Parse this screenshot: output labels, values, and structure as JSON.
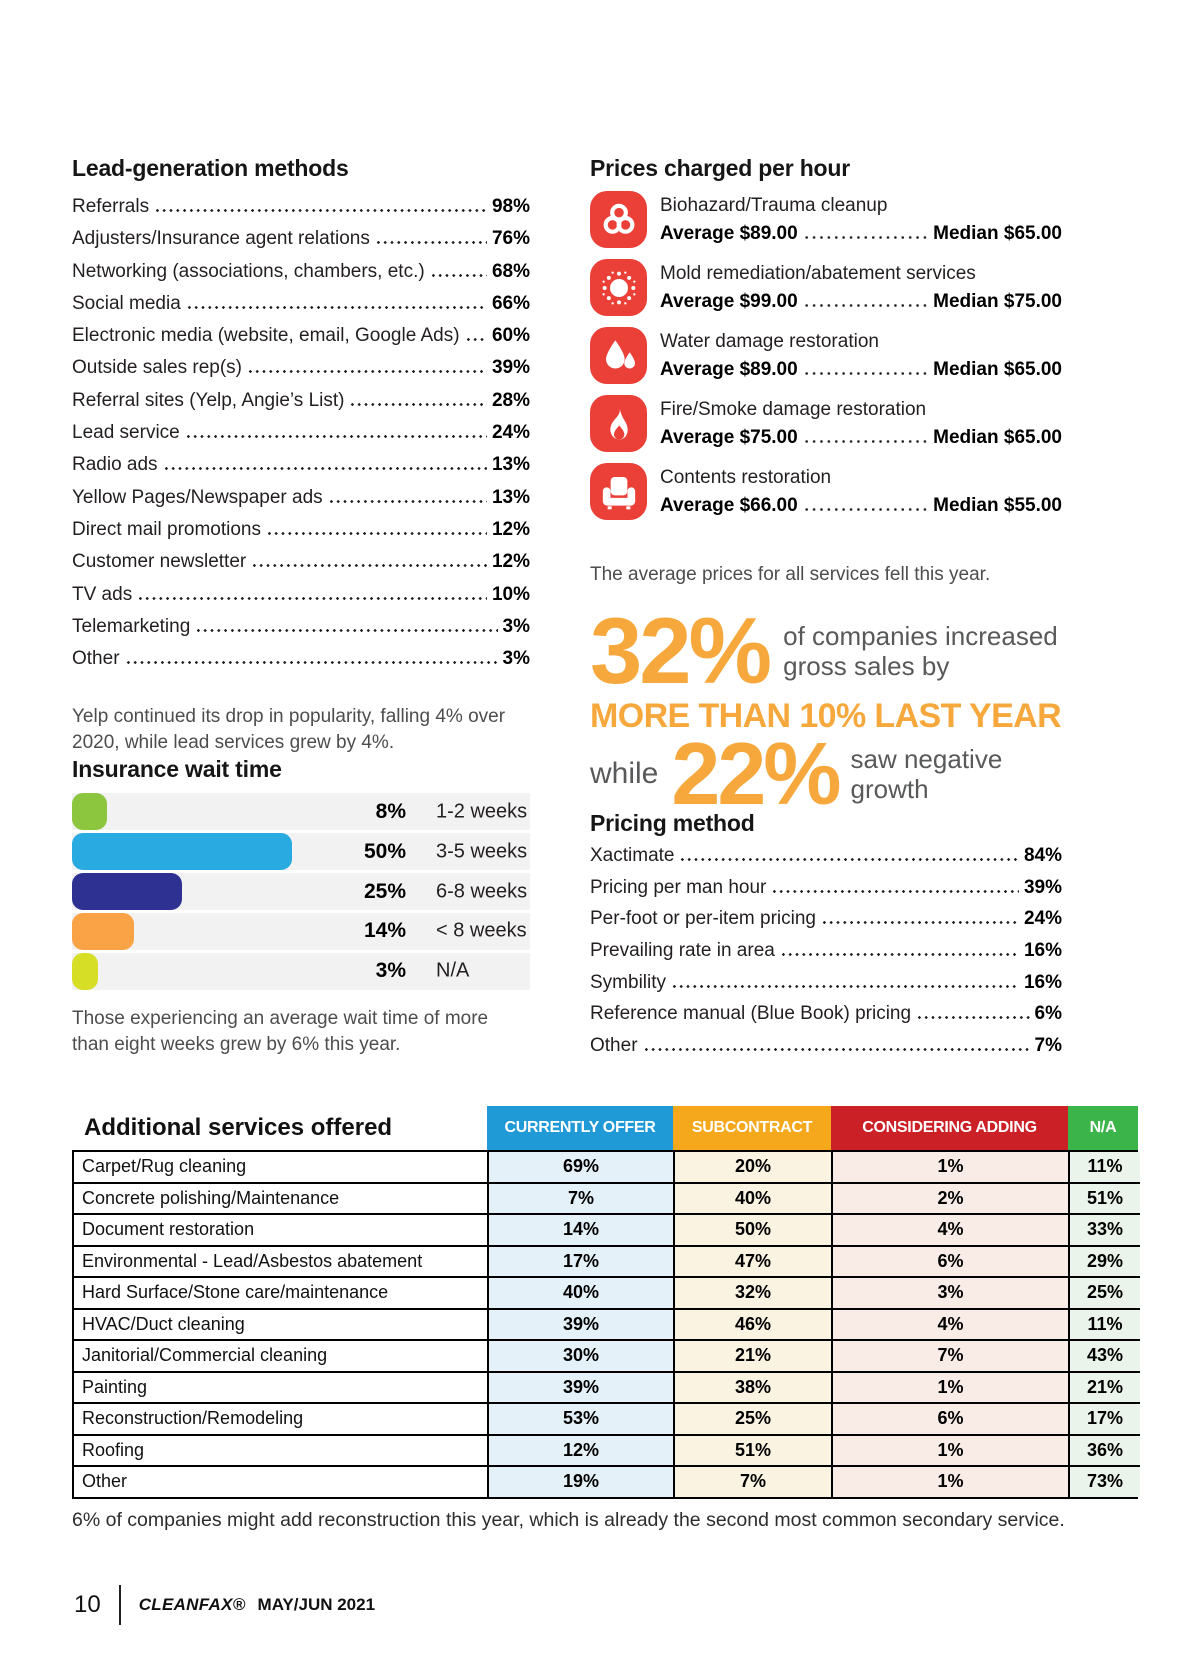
{
  "colors": {
    "icon_red": "#EA4038",
    "stat_orange": "#F6A83C",
    "note_gray": "#4D4D4F",
    "row_background": "#F2F2F3"
  },
  "lead_generation": {
    "title": "Lead-generation methods",
    "items": [
      {
        "label": "Referrals",
        "value": "98%"
      },
      {
        "label": "Adjusters/Insurance agent relations",
        "value": "76%"
      },
      {
        "label": "Networking (associations, chambers, etc.)",
        "value": "68%"
      },
      {
        "label": "Social media",
        "value": "66%"
      },
      {
        "label": "Electronic media (website, email, Google Ads)",
        "value": "60%"
      },
      {
        "label": "Outside sales rep(s)",
        "value": "39%"
      },
      {
        "label": "Referral sites (Yelp, Angie’s List)",
        "value": "28%"
      },
      {
        "label": "Lead service",
        "value": "24%"
      },
      {
        "label": "Radio ads",
        "value": "13%"
      },
      {
        "label": "Yellow Pages/Newspaper ads",
        "value": "13%"
      },
      {
        "label": "Direct mail promotions",
        "value": "12%"
      },
      {
        "label": "Customer newsletter",
        "value": "12%"
      },
      {
        "label": "TV ads",
        "value": "10%"
      },
      {
        "label": "Telemarketing",
        "value": "3%"
      },
      {
        "label": "Other",
        "value": "3%"
      }
    ],
    "note": "Yelp continued its drop in popularity, falling 4% over 2020, while lead services grew by 4%."
  },
  "insurance_wait": {
    "title": "Insurance wait time",
    "rows": [
      {
        "pct": 8,
        "value": "8%",
        "label": "1-2 weeks",
        "color": "#8CC63F"
      },
      {
        "pct": 50,
        "value": "50%",
        "label": "3-5 weeks",
        "color": "#29ABE2"
      },
      {
        "pct": 25,
        "value": "25%",
        "label": "6-8 weeks",
        "color": "#2E3192"
      },
      {
        "pct": 14,
        "value": "14%",
        "label": "< 8 weeks",
        "color": "#F9A346"
      },
      {
        "pct": 3,
        "value": "3%",
        "label": "N/A",
        "color": "#D6DE26"
      }
    ],
    "note": "Those experiencing an average wait time of more than eight weeks grew by 6% this year."
  },
  "prices": {
    "title": "Prices charged per hour",
    "items": [
      {
        "icon": "biohazard-icon",
        "name": "Biohazard/Trauma cleanup",
        "avg": "Average $89.00",
        "med": "Median $65.00"
      },
      {
        "icon": "mold-icon",
        "name": "Mold remediation/abatement services",
        "avg": "Average $99.00",
        "med": "Median $75.00"
      },
      {
        "icon": "water-drops-icon",
        "name": "Water damage restoration",
        "avg": "Average $89.00",
        "med": "Median $65.00"
      },
      {
        "icon": "flame-icon",
        "name": "Fire/Smoke damage restoration",
        "avg": "Average $75.00",
        "med": "Median $65.00"
      },
      {
        "icon": "armchair-icon",
        "name": "Contents restoration",
        "avg": "Average $66.00",
        "med": "Median $55.00"
      }
    ],
    "note": "The average prices for all services fell this year."
  },
  "growth": {
    "stat1": "32%",
    "stat1_caption": "of companies increased gross sales by",
    "stat1_line2": "MORE THAN 10% LAST YEAR",
    "connector": "while",
    "stat2": "22%",
    "stat2_caption": "saw negative growth"
  },
  "pricing_method": {
    "title": "Pricing method",
    "items": [
      {
        "label": "Xactimate",
        "value": "84%"
      },
      {
        "label": "Pricing per man hour",
        "value": "39%"
      },
      {
        "label": "Per-foot or per-item pricing",
        "value": "24%"
      },
      {
        "label": "Prevailing rate in area",
        "value": "16%"
      },
      {
        "label": "Symbility",
        "value": "16%"
      },
      {
        "label": "Reference manual (Blue Book) pricing",
        "value": "6%"
      },
      {
        "label": "Other",
        "value": "7%"
      }
    ]
  },
  "services_table": {
    "title": "Additional services offered",
    "columns": [
      {
        "label": "CURRENTLY OFFER",
        "color": "#209AD6",
        "tint": "#E5F1F9"
      },
      {
        "label": "SUBCONTRACT",
        "color": "#F5A81C",
        "tint": "#FBF3E2"
      },
      {
        "label": "CONSIDERING ADDING",
        "color": "#CB2026",
        "tint": "#F9ECE7"
      },
      {
        "label": "N/A",
        "color": "#3BB54A",
        "tint": "#EAF4EA"
      }
    ],
    "rows": [
      {
        "label": "Carpet/Rug cleaning",
        "values": [
          "69%",
          "20%",
          "1%",
          "11%"
        ]
      },
      {
        "label": "Concrete polishing/Maintenance",
        "values": [
          "7%",
          "40%",
          "2%",
          "51%"
        ]
      },
      {
        "label": "Document restoration",
        "values": [
          "14%",
          "50%",
          "4%",
          "33%"
        ]
      },
      {
        "label": "Environmental - Lead/Asbestos abatement",
        "values": [
          "17%",
          "47%",
          "6%",
          "29%"
        ]
      },
      {
        "label": "Hard Surface/Stone care/maintenance",
        "values": [
          "40%",
          "32%",
          "3%",
          "25%"
        ]
      },
      {
        "label": "HVAC/Duct cleaning",
        "values": [
          "39%",
          "46%",
          "4%",
          "11%"
        ]
      },
      {
        "label": "Janitorial/Commercial cleaning",
        "values": [
          "30%",
          "21%",
          "7%",
          "43%"
        ]
      },
      {
        "label": "Painting",
        "values": [
          "39%",
          "38%",
          "1%",
          "21%"
        ]
      },
      {
        "label": "Reconstruction/Remodeling",
        "values": [
          "53%",
          "25%",
          "6%",
          "17%"
        ]
      },
      {
        "label": "Roofing",
        "values": [
          "12%",
          "51%",
          "1%",
          "36%"
        ]
      },
      {
        "label": "Other",
        "values": [
          "19%",
          "7%",
          "1%",
          "73%"
        ]
      }
    ],
    "footnote": "6% of companies might add reconstruction this year, which is already the second most common secondary service."
  },
  "footer": {
    "page_number": "10",
    "magazine": "CLEANFAX®",
    "issue": "MAY/JUN 2021"
  }
}
